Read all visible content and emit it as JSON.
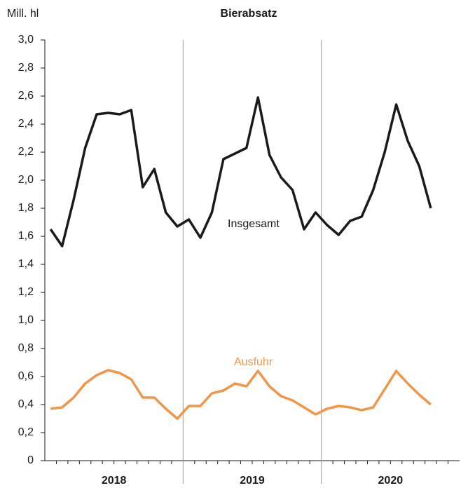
{
  "chart_data": {
    "type": "line",
    "title": "Bierabsatz",
    "y_label": "Mill. hl",
    "x_groups": [
      "2018",
      "2019",
      "2020"
    ],
    "categories": [
      null,
      null,
      null,
      null,
      null,
      null,
      null,
      null,
      null,
      null,
      null,
      null,
      null,
      null,
      null,
      null,
      null,
      null,
      null,
      null,
      null,
      null,
      null,
      null,
      null,
      null,
      null,
      null,
      null,
      null,
      null,
      null,
      null,
      null
    ],
    "series": [
      {
        "name": "Insgesamt",
        "color": "#1a1a1a",
        "values": [
          1.65,
          1.53,
          1.86,
          2.23,
          2.47,
          2.48,
          2.47,
          2.5,
          1.95,
          2.08,
          1.77,
          1.67,
          1.72,
          1.59,
          1.77,
          2.15,
          2.19,
          2.23,
          2.59,
          2.18,
          2.02,
          1.93,
          1.65,
          1.77,
          1.68,
          1.61,
          1.71,
          1.74,
          1.93,
          2.2,
          2.54,
          2.28,
          2.1,
          1.8
        ]
      },
      {
        "name": "Ausfuhr",
        "color": "#f0964a",
        "values": [
          0.37,
          0.38,
          0.45,
          0.55,
          0.61,
          0.645,
          0.625,
          0.58,
          0.45,
          0.45,
          0.37,
          0.3,
          0.39,
          0.39,
          0.48,
          0.5,
          0.55,
          0.53,
          0.64,
          0.53,
          0.46,
          0.43,
          0.38,
          0.33,
          0.37,
          0.39,
          0.38,
          0.36,
          0.38,
          0.51,
          0.64,
          0.55,
          0.47,
          0.4
        ]
      }
    ],
    "ylim": [
      0,
      3
    ],
    "yticks": [
      0,
      {
        "value": 0.2,
        "label": "0,2"
      },
      {
        "value": 0.4,
        "label": "0,4"
      },
      {
        "value": 0.6,
        "label": "0,6"
      },
      {
        "value": 0.8,
        "label": "0,8"
      },
      {
        "value": 1,
        "label": "1,0"
      },
      {
        "value": 1.2,
        "label": "1,2"
      },
      {
        "value": 1.4,
        "label": "1,4"
      },
      {
        "value": 1.6,
        "label": "1,6"
      },
      {
        "value": 1.8,
        "label": "1,8"
      },
      {
        "value": 2,
        "label": "2,0"
      },
      {
        "value": 2.2,
        "label": "2,2"
      },
      {
        "value": 2.4,
        "label": "2,4"
      },
      {
        "value": 2.6,
        "label": "2,6"
      },
      {
        "value": 2.8,
        "label": "2,8"
      },
      {
        "value": 3,
        "label": "3,0"
      }
    ]
  }
}
